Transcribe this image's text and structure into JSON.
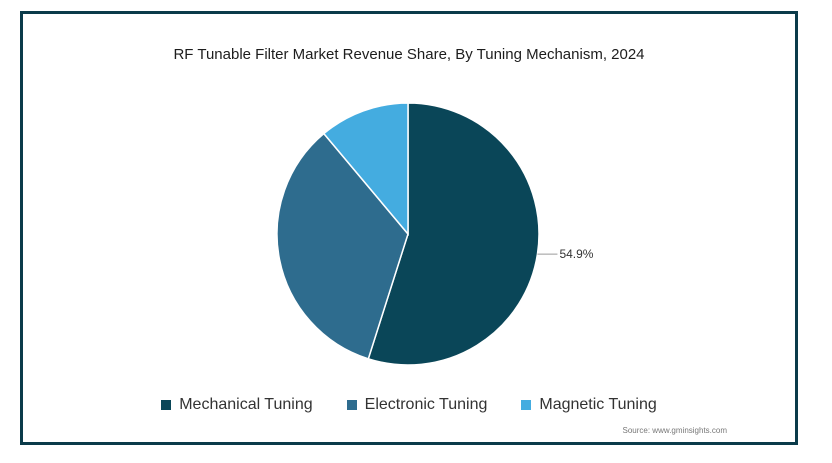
{
  "chart_data": {
    "type": "pie",
    "title": "RF Tunable Filter Market Revenue Share, By Tuning Mechanism, 2024",
    "categories": [
      "Mechanical Tuning",
      "Electronic Tuning",
      "Magnetic Tuning"
    ],
    "values": [
      54.9,
      34.0,
      11.1
    ],
    "colors": [
      "#0a4658",
      "#2e6c8e",
      "#44ace0"
    ],
    "data_labels": [
      "54.9%",
      "",
      ""
    ],
    "legend_position": "bottom"
  },
  "source": "Source: www.gminsights.com"
}
